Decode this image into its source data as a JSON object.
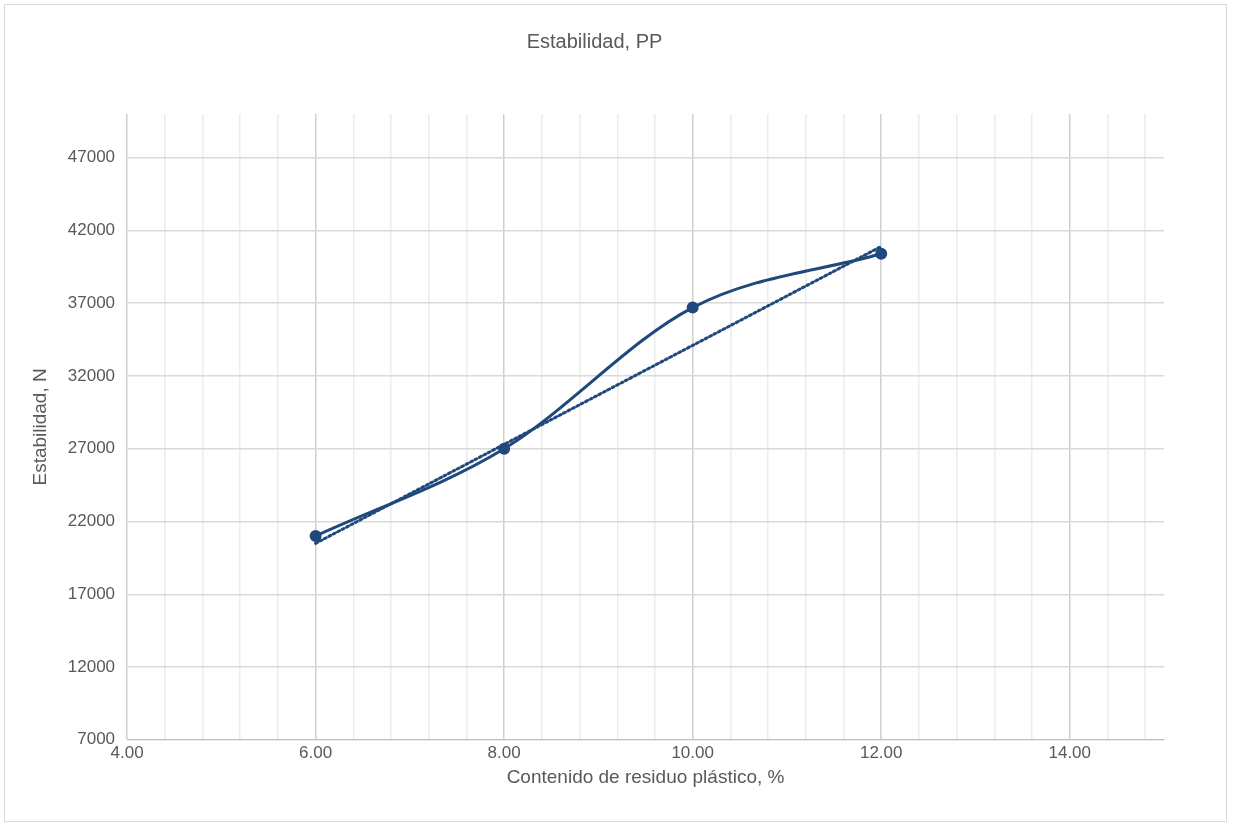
{
  "chart_data": {
    "type": "line",
    "title": "Estabilidad, PP",
    "xlabel": "Contenido de residuo plástico, %",
    "ylabel": "Estabilidad, N",
    "xlim": [
      4,
      15
    ],
    "xticks": [
      {
        "value": 4,
        "label": "4.00"
      },
      {
        "value": 4.4,
        "label": null
      },
      {
        "value": 4.8,
        "label": null
      },
      {
        "value": 5.2,
        "label": null
      },
      {
        "value": 5.6,
        "label": null
      },
      {
        "value": 6,
        "label": "6.00"
      },
      {
        "value": 6.4,
        "label": null
      },
      {
        "value": 6.8,
        "label": null
      },
      {
        "value": 7.2,
        "label": null
      },
      {
        "value": 7.6,
        "label": null
      },
      {
        "value": 8,
        "label": "8.00"
      },
      {
        "value": 8.4,
        "label": null
      },
      {
        "value": 8.8,
        "label": null
      },
      {
        "value": 9.2,
        "label": null
      },
      {
        "value": 9.6,
        "label": null
      },
      {
        "value": 10,
        "label": "10.00"
      },
      {
        "value": 10.4,
        "label": null
      },
      {
        "value": 10.8,
        "label": null
      },
      {
        "value": 11.2,
        "label": null
      },
      {
        "value": 11.6,
        "label": null
      },
      {
        "value": 12,
        "label": "12.00"
      },
      {
        "value": 12.4,
        "label": null
      },
      {
        "value": 12.8,
        "label": null
      },
      {
        "value": 13.2,
        "label": null
      },
      {
        "value": 13.6,
        "label": null
      },
      {
        "value": 14,
        "label": "14.00"
      },
      {
        "value": 14.4,
        "label": null
      },
      {
        "value": 14.8,
        "label": null
      }
    ],
    "ylim": [
      7000,
      50000
    ],
    "yticks": [
      7000,
      12000,
      17000,
      22000,
      27000,
      32000,
      37000,
      42000,
      47000
    ],
    "grid": true,
    "legend": false,
    "series": [
      {
        "color": "#1f497d",
        "x": [
          6,
          8,
          10,
          12
        ],
        "values": [
          21000,
          27000,
          36700,
          40400
        ],
        "marker": "circle",
        "line_style": "solid"
      },
      {
        "color": "#1f497d",
        "x": [
          6,
          12
        ],
        "values": [
          20500,
          40900
        ],
        "marker": "none",
        "line_style": "dotted"
      }
    ]
  }
}
